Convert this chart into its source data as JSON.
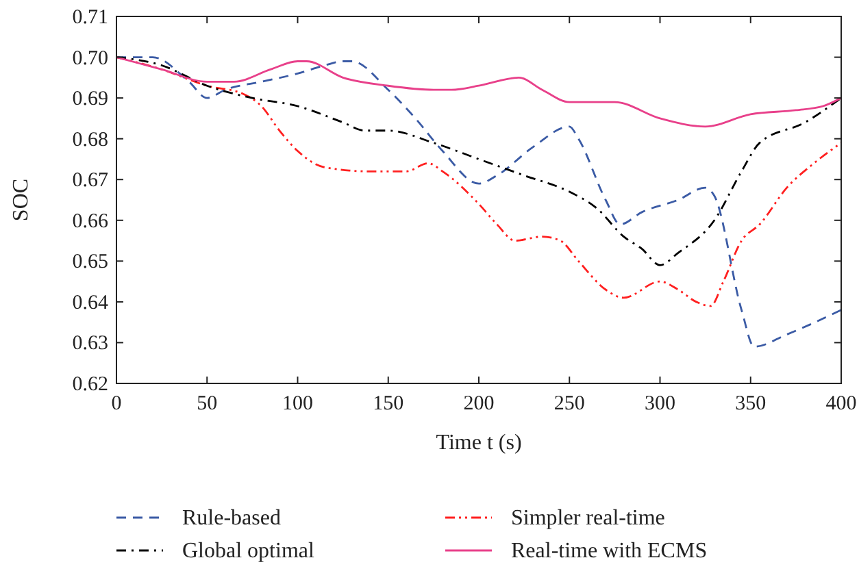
{
  "chart_data": {
    "type": "line",
    "xlabel": "Time t (s)",
    "ylabel": "SOC",
    "xlim": [
      0,
      400
    ],
    "xticks": [
      0,
      50,
      100,
      150,
      200,
      250,
      300,
      350,
      400
    ],
    "ylim": [
      0.62,
      0.71
    ],
    "yticks": [
      0.62,
      0.63,
      0.64,
      0.65,
      0.66,
      0.67,
      0.68,
      0.69,
      {
        "value": 0.7,
        "label": "0.70"
      },
      0.71
    ],
    "grid": false,
    "legend": "bottom",
    "marker": "none",
    "series": [
      {
        "name": "Rule-based",
        "color": "#3b5ba5",
        "line_style": "dashed",
        "x": [
          0,
          20,
          40,
          50,
          60,
          80,
          100,
          115,
          125,
          130,
          150,
          165,
          180,
          200,
          210,
          230,
          250,
          255,
          270,
          278,
          290,
          310,
          325,
          330,
          345,
          352,
          370,
          400
        ],
        "values": [
          0.7,
          0.7,
          0.694,
          0.69,
          0.692,
          0.694,
          0.696,
          0.698,
          0.699,
          0.699,
          0.692,
          0.685,
          0.677,
          0.669,
          0.671,
          0.678,
          0.683,
          0.68,
          0.665,
          0.659,
          0.662,
          0.665,
          0.668,
          0.666,
          0.638,
          0.629,
          0.632,
          0.638
        ]
      },
      {
        "name": "Simpler real-time",
        "color": "#ff2020",
        "line_style": "dashdotdot",
        "x": [
          0,
          25,
          50,
          70,
          80,
          90,
          100,
          115,
          140,
          160,
          172,
          180,
          200,
          210,
          220,
          235,
          245,
          255,
          270,
          280,
          300,
          310,
          320,
          328,
          335,
          345,
          355,
          370,
          385,
          400
        ],
        "values": [
          0.7,
          0.697,
          0.693,
          0.691,
          0.688,
          0.682,
          0.677,
          0.673,
          0.672,
          0.672,
          0.674,
          0.672,
          0.664,
          0.659,
          0.655,
          0.656,
          0.655,
          0.65,
          0.643,
          0.641,
          0.645,
          0.643,
          0.64,
          0.639,
          0.645,
          0.655,
          0.659,
          0.668,
          0.674,
          0.679
        ]
      },
      {
        "name": "Global optimal",
        "color": "#000000",
        "line_style": "dashdot",
        "x": [
          0,
          25,
          50,
          75,
          100,
          125,
          137,
          150,
          175,
          200,
          225,
          250,
          265,
          280,
          290,
          300,
          310,
          330,
          345,
          355,
          380,
          400
        ],
        "values": [
          0.7,
          0.698,
          0.693,
          0.69,
          0.688,
          0.684,
          0.682,
          0.682,
          0.679,
          0.675,
          0.671,
          0.667,
          0.663,
          0.656,
          0.653,
          0.649,
          0.652,
          0.66,
          0.672,
          0.679,
          0.684,
          0.69
        ]
      },
      {
        "name": "Real-time with ECMS",
        "color": "#e8408a",
        "line_style": "solid",
        "x": [
          0,
          25,
          50,
          65,
          85,
          100,
          105,
          125,
          150,
          175,
          185,
          200,
          222,
          235,
          250,
          275,
          300,
          325,
          350,
          375,
          390,
          400
        ],
        "values": [
          0.7,
          0.697,
          0.694,
          0.694,
          0.697,
          0.699,
          0.699,
          0.695,
          0.693,
          0.692,
          0.692,
          0.693,
          0.695,
          0.692,
          0.689,
          0.689,
          0.685,
          0.683,
          0.686,
          0.687,
          0.688,
          0.69
        ]
      }
    ]
  }
}
